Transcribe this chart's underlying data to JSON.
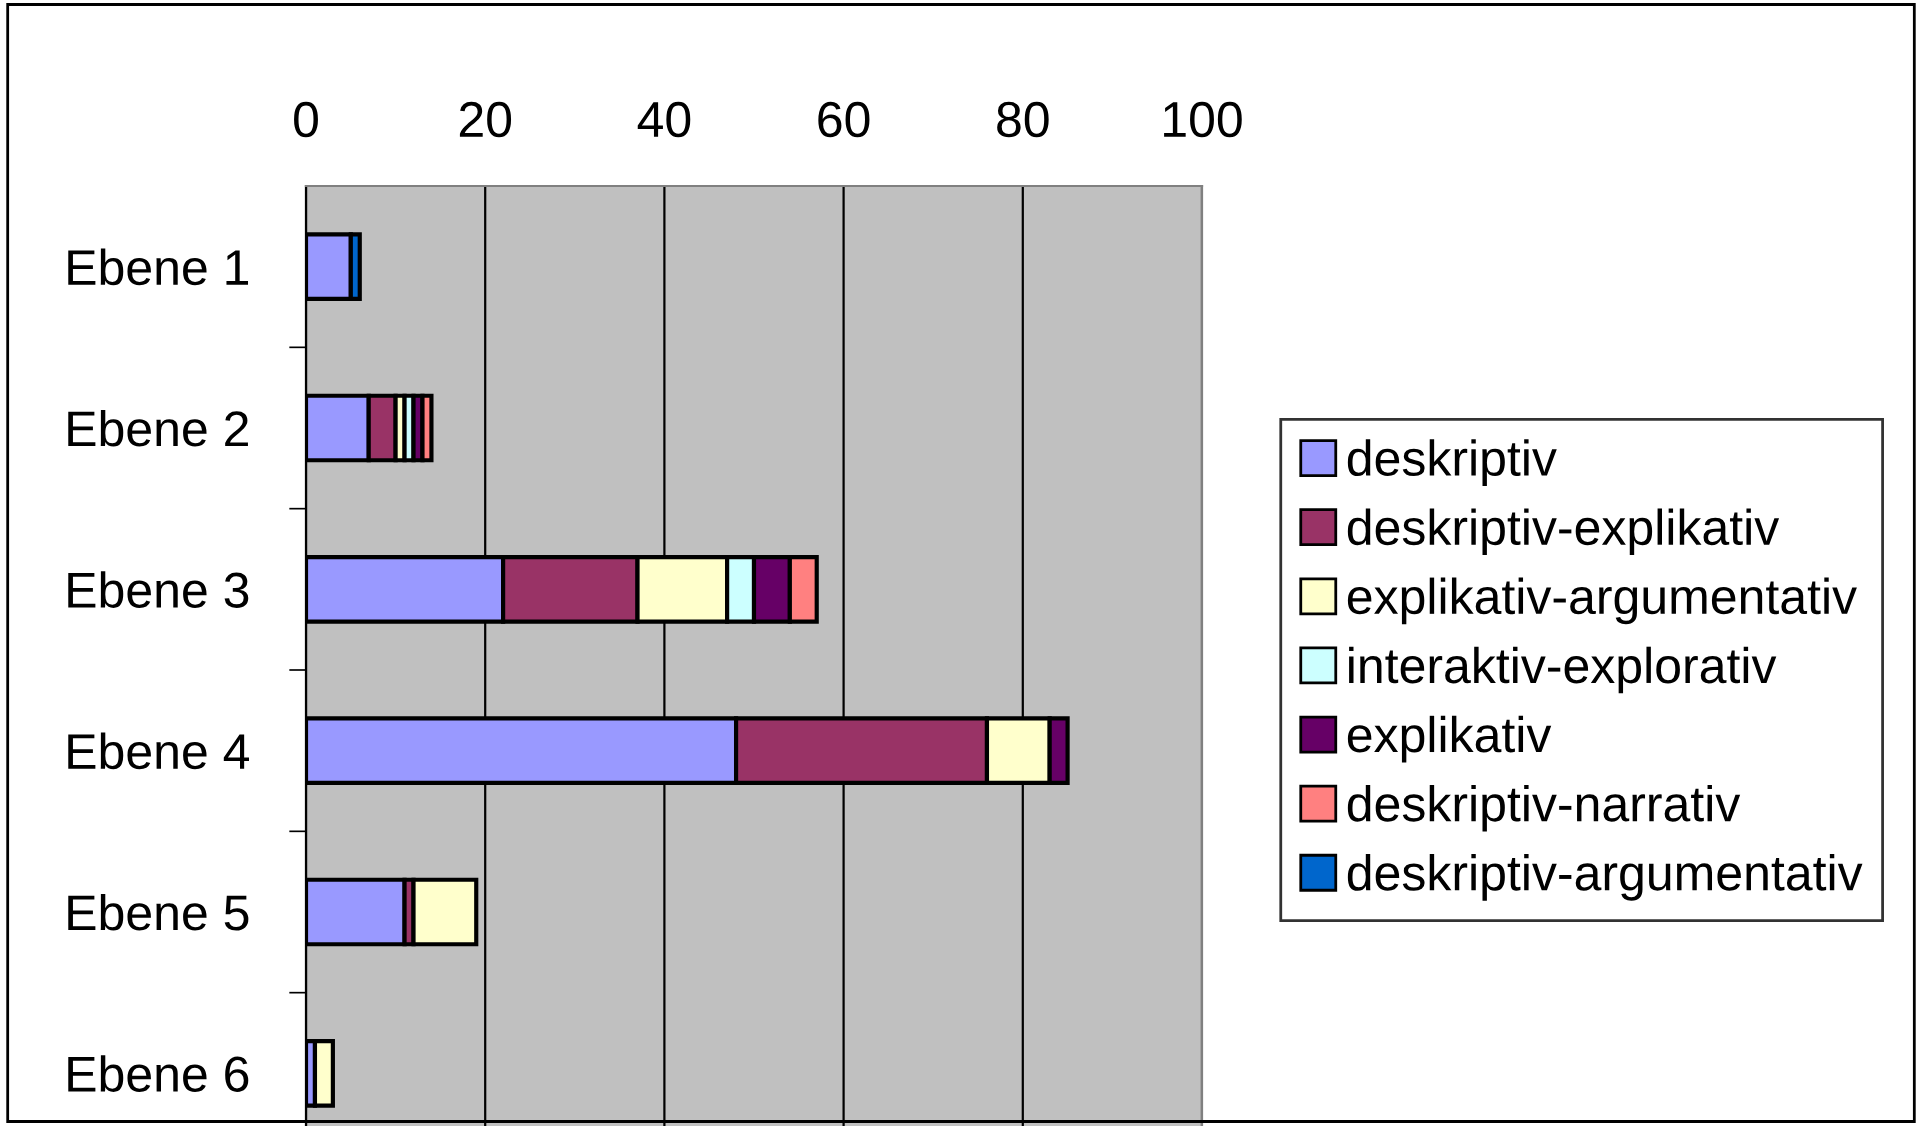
{
  "chart_data": {
    "type": "bar",
    "orientation": "horizontal",
    "stacked": true,
    "categories": [
      "Ebene 1",
      "Ebene 2",
      "Ebene 3",
      "Ebene 4",
      "Ebene 5",
      "Ebene 6"
    ],
    "series": [
      {
        "name": "deskriptiv",
        "color": "#9999ff",
        "values": [
          5,
          7,
          22,
          48,
          11,
          1
        ]
      },
      {
        "name": "deskriptiv-explikativ",
        "color": "#993366",
        "values": [
          null,
          3,
          15,
          28,
          1,
          null
        ]
      },
      {
        "name": "explikativ-argumentativ",
        "color": "#ffffcc",
        "values": [
          null,
          1,
          10,
          7,
          7,
          2
        ]
      },
      {
        "name": "interaktiv-explorativ",
        "color": "#ccffff",
        "values": [
          null,
          1,
          3,
          null,
          null,
          null
        ]
      },
      {
        "name": "explikativ",
        "color": "#660066",
        "values": [
          null,
          1,
          4,
          2,
          null,
          null
        ]
      },
      {
        "name": "deskriptiv-narrativ",
        "color": "#ff8080",
        "values": [
          null,
          1,
          3,
          null,
          null,
          null
        ]
      },
      {
        "name": "deskriptiv-argumentativ",
        "color": "#0066cc",
        "values": [
          1,
          null,
          null,
          null,
          null,
          null
        ]
      }
    ],
    "xlim": [
      0,
      100
    ],
    "xticks": [
      0,
      20,
      40,
      60,
      80,
      100
    ],
    "grid": "x",
    "legend": "right"
  }
}
